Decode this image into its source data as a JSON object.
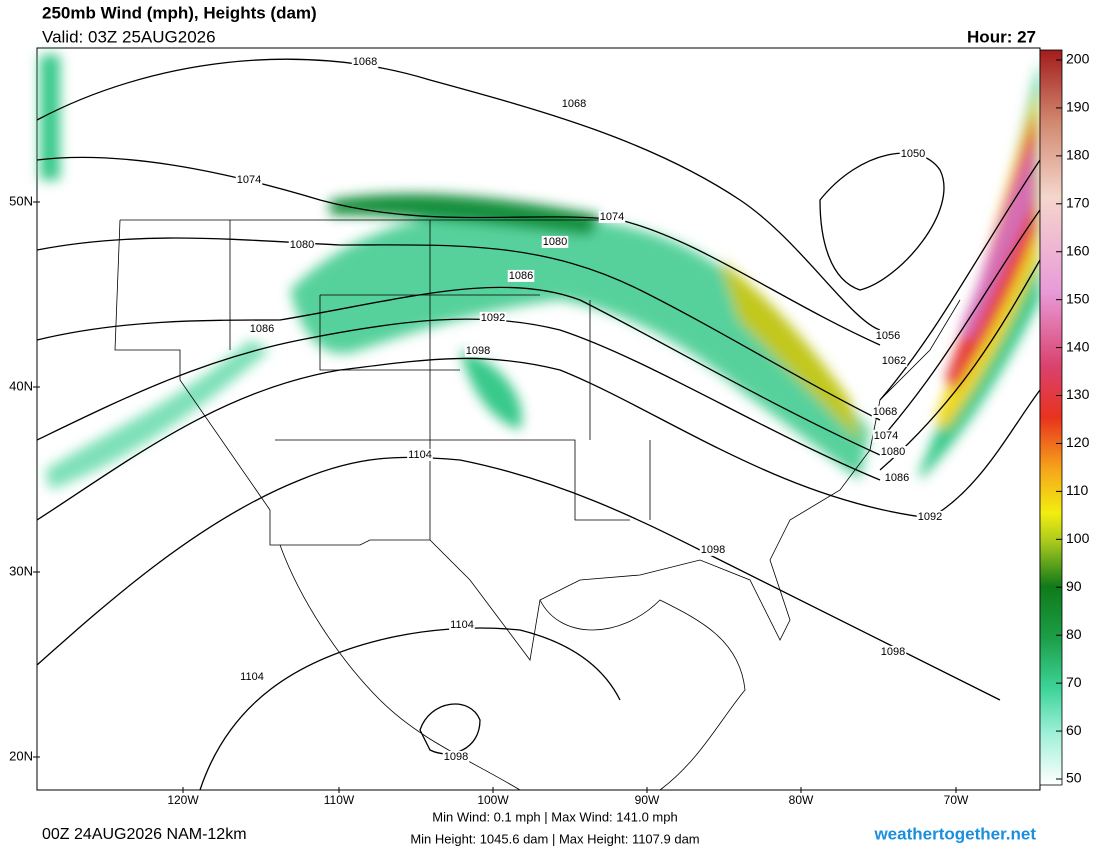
{
  "header": {
    "title": "250mb Wind (mph), Heights (dam)",
    "valid": "Valid: 03Z 25AUG2026",
    "hour": "Hour: 27"
  },
  "map": {
    "lat_labels": [
      "50N",
      "40N",
      "30N",
      "20N"
    ],
    "lon_labels": [
      "120W",
      "110W",
      "100W",
      "90W",
      "80W",
      "70W"
    ],
    "contour_labels": [
      "1068",
      "1068",
      "1074",
      "1074",
      "1080",
      "1080",
      "1086",
      "1086",
      "1092",
      "1098",
      "1104",
      "1104",
      "1104",
      "1098",
      "1098",
      "1098",
      "1092",
      "1086",
      "1080",
      "1074",
      "1068",
      "1062",
      "1056",
      "1050"
    ]
  },
  "colorbar": {
    "ticks": [
      200,
      190,
      180,
      170,
      160,
      150,
      140,
      130,
      120,
      110,
      100,
      90,
      80,
      70,
      60,
      50
    ]
  },
  "footer": {
    "run": "00Z 24AUG2026 NAM-12km",
    "wind": "Min Wind:   0.1 mph | Max Wind: 141.0 mph",
    "height": "Min Height: 1045.6 dam | Max Height: 1107.9 dam",
    "site": "weathertogether.net"
  }
}
